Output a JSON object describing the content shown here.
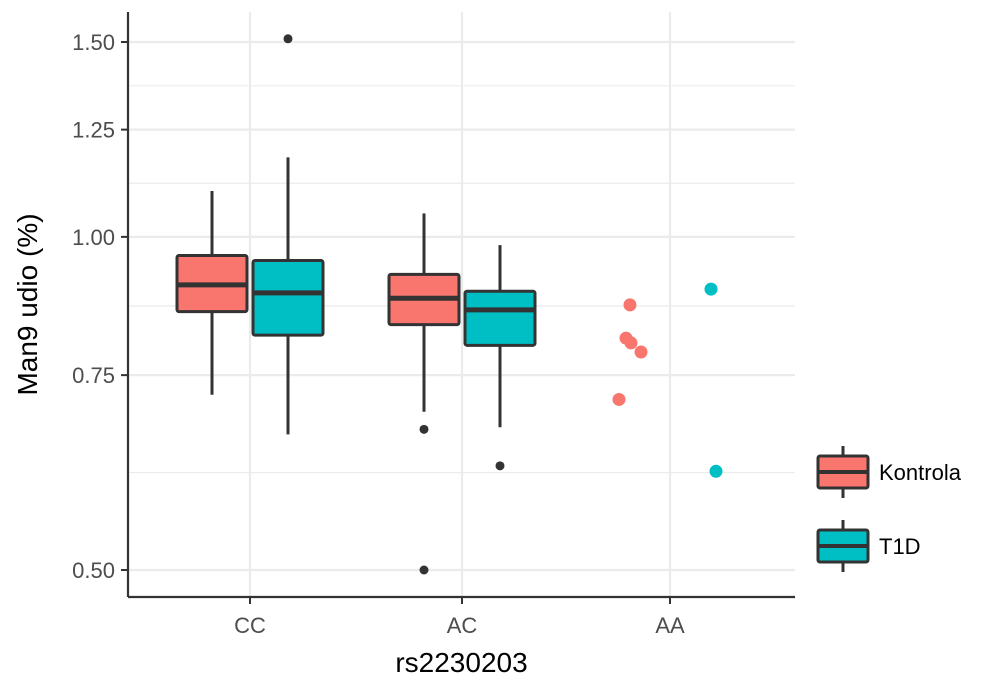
{
  "chart_data": {
    "type": "boxplot",
    "title": "",
    "xlabel": "rs2230203",
    "ylabel": "Man9 udio (%)",
    "y_scale": "log10",
    "ylim": [
      0.48,
      1.56
    ],
    "y_ticks": [
      0.5,
      0.75,
      1.0,
      1.25,
      1.5
    ],
    "y_tick_labels": [
      "0.50",
      "0.75",
      "1.00",
      "1.25",
      "1.50"
    ],
    "categories": [
      "CC",
      "AC",
      "AA"
    ],
    "grid": true,
    "legend_position": "right",
    "series": [
      {
        "name": "Kontrola",
        "color": "#F8766D",
        "boxes": [
          {
            "category": "CC",
            "whisker_low": 0.72,
            "q1": 0.856,
            "median": 0.905,
            "q3": 0.962,
            "whisker_high": 1.1,
            "outliers": []
          },
          {
            "category": "AC",
            "whisker_low": 0.695,
            "q1": 0.833,
            "median": 0.88,
            "q3": 0.925,
            "whisker_high": 1.05,
            "outliers": [
              0.67,
              0.5
            ]
          },
          {
            "category": "AA",
            "whisker_low": null,
            "q1": null,
            "median": null,
            "q3": null,
            "whisker_high": null,
            "outliers": [],
            "points": [
              0.868,
              0.81,
              0.802,
              0.787,
              0.713
            ]
          }
        ]
      },
      {
        "name": "T1D",
        "color": "#00BFC4",
        "boxes": [
          {
            "category": "CC",
            "whisker_low": 0.663,
            "q1": 0.815,
            "median": 0.89,
            "q3": 0.952,
            "whisker_high": 1.18,
            "outliers": [
              1.51
            ]
          },
          {
            "category": "AC",
            "whisker_low": 0.673,
            "q1": 0.798,
            "median": 0.859,
            "q3": 0.893,
            "whisker_high": 0.983,
            "outliers": [
              0.621
            ]
          },
          {
            "category": "AA",
            "whisker_low": null,
            "q1": null,
            "median": null,
            "q3": null,
            "whisker_high": null,
            "outliers": [],
            "points": [
              0.897,
              0.614
            ]
          }
        ]
      }
    ]
  }
}
